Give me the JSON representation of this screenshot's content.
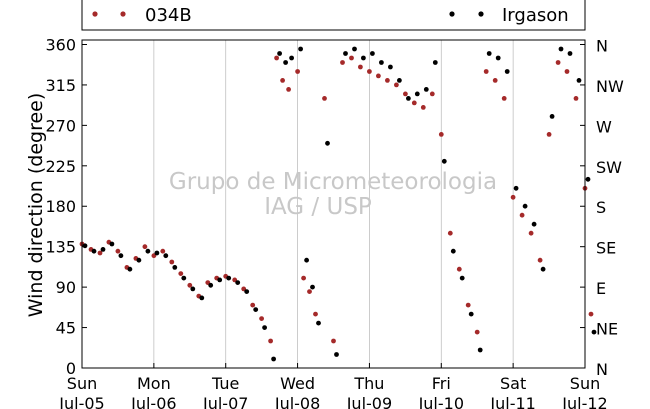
{
  "chart_data": {
    "type": "scatter",
    "title": "",
    "xlabel": "",
    "ylabel": "Wind direction (degree)",
    "ylim": [
      0,
      365
    ],
    "xlim": [
      "2010-07-05",
      "2010-07-12"
    ],
    "yticks": [
      0,
      45,
      90,
      135,
      180,
      225,
      270,
      315,
      360
    ],
    "ytick_labels": [
      "0",
      "45",
      "90",
      "135",
      "180",
      "225",
      "270",
      "315",
      "360"
    ],
    "right_yticks": [
      0,
      45,
      90,
      135,
      180,
      225,
      270,
      315,
      360
    ],
    "right_ytick_labels": [
      "N",
      "NE",
      "E",
      "SE",
      "S",
      "SW",
      "W",
      "NW",
      "N"
    ],
    "xticks": [
      {
        "date": "2010-07-05",
        "day": "Sun",
        "label": "Jul-05"
      },
      {
        "date": "2010-07-06",
        "day": "Mon",
        "label": "Jul-06"
      },
      {
        "date": "2010-07-07",
        "day": "Tue",
        "label": "Jul-07"
      },
      {
        "date": "2010-07-08",
        "day": "Wed",
        "label": "Jul-08"
      },
      {
        "date": "2010-07-09",
        "day": "Thu",
        "label": "Jul-09"
      },
      {
        "date": "2010-07-10",
        "day": "Fri",
        "label": "Jul-10"
      },
      {
        "date": "2010-07-11",
        "day": "Sat",
        "label": "Jul-11"
      },
      {
        "date": "2010-07-12",
        "day": "Sun",
        "label": "Jul-12"
      }
    ],
    "grid": true,
    "legend_position": "top",
    "watermark": [
      "Grupo de Micrometeorologia",
      "IAG / USP"
    ],
    "series": [
      {
        "name": "034B",
        "color": "#a52a2a",
        "points": [
          [
            "2010-07-05T00:00",
            138
          ],
          [
            "2010-07-05T03:00",
            132
          ],
          [
            "2010-07-05T06:00",
            128
          ],
          [
            "2010-07-05T09:00",
            140
          ],
          [
            "2010-07-05T12:00",
            130
          ],
          [
            "2010-07-05T15:00",
            112
          ],
          [
            "2010-07-05T18:00",
            122
          ],
          [
            "2010-07-05T21:00",
            135
          ],
          [
            "2010-07-06T00:00",
            125
          ],
          [
            "2010-07-06T03:00",
            130
          ],
          [
            "2010-07-06T06:00",
            118
          ],
          [
            "2010-07-06T09:00",
            105
          ],
          [
            "2010-07-06T12:00",
            92
          ],
          [
            "2010-07-06T15:00",
            80
          ],
          [
            "2010-07-06T18:00",
            95
          ],
          [
            "2010-07-06T21:00",
            100
          ],
          [
            "2010-07-07T00:00",
            102
          ],
          [
            "2010-07-07T03:00",
            98
          ],
          [
            "2010-07-07T06:00",
            88
          ],
          [
            "2010-07-07T09:00",
            70
          ],
          [
            "2010-07-07T12:00",
            55
          ],
          [
            "2010-07-07T15:00",
            30
          ],
          [
            "2010-07-07T17:00",
            345
          ],
          [
            "2010-07-07T19:00",
            320
          ],
          [
            "2010-07-07T21:00",
            310
          ],
          [
            "2010-07-08T00:00",
            330
          ],
          [
            "2010-07-08T02:00",
            100
          ],
          [
            "2010-07-08T04:00",
            85
          ],
          [
            "2010-07-08T06:00",
            60
          ],
          [
            "2010-07-08T09:00",
            300
          ],
          [
            "2010-07-08T12:00",
            30
          ],
          [
            "2010-07-08T15:00",
            340
          ],
          [
            "2010-07-08T18:00",
            345
          ],
          [
            "2010-07-08T21:00",
            335
          ],
          [
            "2010-07-09T00:00",
            330
          ],
          [
            "2010-07-09T03:00",
            325
          ],
          [
            "2010-07-09T06:00",
            320
          ],
          [
            "2010-07-09T09:00",
            315
          ],
          [
            "2010-07-09T12:00",
            305
          ],
          [
            "2010-07-09T15:00",
            295
          ],
          [
            "2010-07-09T18:00",
            290
          ],
          [
            "2010-07-09T21:00",
            305
          ],
          [
            "2010-07-10T00:00",
            260
          ],
          [
            "2010-07-10T03:00",
            150
          ],
          [
            "2010-07-10T06:00",
            110
          ],
          [
            "2010-07-10T09:00",
            70
          ],
          [
            "2010-07-10T12:00",
            40
          ],
          [
            "2010-07-10T15:00",
            330
          ],
          [
            "2010-07-10T18:00",
            320
          ],
          [
            "2010-07-10T21:00",
            300
          ],
          [
            "2010-07-11T00:00",
            190
          ],
          [
            "2010-07-11T03:00",
            170
          ],
          [
            "2010-07-11T06:00",
            150
          ],
          [
            "2010-07-11T09:00",
            120
          ],
          [
            "2010-07-11T12:00",
            260
          ],
          [
            "2010-07-11T15:00",
            340
          ],
          [
            "2010-07-11T18:00",
            330
          ],
          [
            "2010-07-11T21:00",
            300
          ],
          [
            "2010-07-12T00:00",
            200
          ],
          [
            "2010-07-12T02:00",
            60
          ]
        ]
      },
      {
        "name": "Irgason",
        "color": "#000000",
        "points": [
          [
            "2010-07-05T01:00",
            136
          ],
          [
            "2010-07-05T04:00",
            130
          ],
          [
            "2010-07-05T07:00",
            132
          ],
          [
            "2010-07-05T10:00",
            138
          ],
          [
            "2010-07-05T13:00",
            125
          ],
          [
            "2010-07-05T16:00",
            110
          ],
          [
            "2010-07-05T19:00",
            120
          ],
          [
            "2010-07-05T22:00",
            130
          ],
          [
            "2010-07-06T01:00",
            128
          ],
          [
            "2010-07-06T04:00",
            125
          ],
          [
            "2010-07-06T07:00",
            112
          ],
          [
            "2010-07-06T10:00",
            100
          ],
          [
            "2010-07-06T13:00",
            88
          ],
          [
            "2010-07-06T16:00",
            78
          ],
          [
            "2010-07-06T19:00",
            92
          ],
          [
            "2010-07-06T22:00",
            98
          ],
          [
            "2010-07-07T01:00",
            100
          ],
          [
            "2010-07-07T04:00",
            95
          ],
          [
            "2010-07-07T07:00",
            85
          ],
          [
            "2010-07-07T10:00",
            65
          ],
          [
            "2010-07-07T13:00",
            45
          ],
          [
            "2010-07-07T16:00",
            10
          ],
          [
            "2010-07-07T18:00",
            350
          ],
          [
            "2010-07-07T20:00",
            340
          ],
          [
            "2010-07-07T22:00",
            345
          ],
          [
            "2010-07-08T01:00",
            355
          ],
          [
            "2010-07-08T03:00",
            120
          ],
          [
            "2010-07-08T05:00",
            90
          ],
          [
            "2010-07-08T07:00",
            50
          ],
          [
            "2010-07-08T10:00",
            250
          ],
          [
            "2010-07-08T13:00",
            15
          ],
          [
            "2010-07-08T16:00",
            350
          ],
          [
            "2010-07-08T19:00",
            355
          ],
          [
            "2010-07-08T22:00",
            345
          ],
          [
            "2010-07-09T01:00",
            350
          ],
          [
            "2010-07-09T04:00",
            340
          ],
          [
            "2010-07-09T07:00",
            335
          ],
          [
            "2010-07-09T10:00",
            320
          ],
          [
            "2010-07-09T13:00",
            300
          ],
          [
            "2010-07-09T16:00",
            305
          ],
          [
            "2010-07-09T19:00",
            310
          ],
          [
            "2010-07-09T22:00",
            340
          ],
          [
            "2010-07-10T01:00",
            230
          ],
          [
            "2010-07-10T04:00",
            130
          ],
          [
            "2010-07-10T07:00",
            100
          ],
          [
            "2010-07-10T10:00",
            60
          ],
          [
            "2010-07-10T13:00",
            20
          ],
          [
            "2010-07-10T16:00",
            350
          ],
          [
            "2010-07-10T19:00",
            345
          ],
          [
            "2010-07-10T22:00",
            330
          ],
          [
            "2010-07-11T01:00",
            200
          ],
          [
            "2010-07-11T04:00",
            180
          ],
          [
            "2010-07-11T07:00",
            160
          ],
          [
            "2010-07-11T10:00",
            110
          ],
          [
            "2010-07-11T13:00",
            280
          ],
          [
            "2010-07-11T16:00",
            355
          ],
          [
            "2010-07-11T19:00",
            350
          ],
          [
            "2010-07-11T22:00",
            320
          ],
          [
            "2010-07-12T01:00",
            210
          ],
          [
            "2010-07-12T03:00",
            40
          ]
        ]
      }
    ]
  }
}
